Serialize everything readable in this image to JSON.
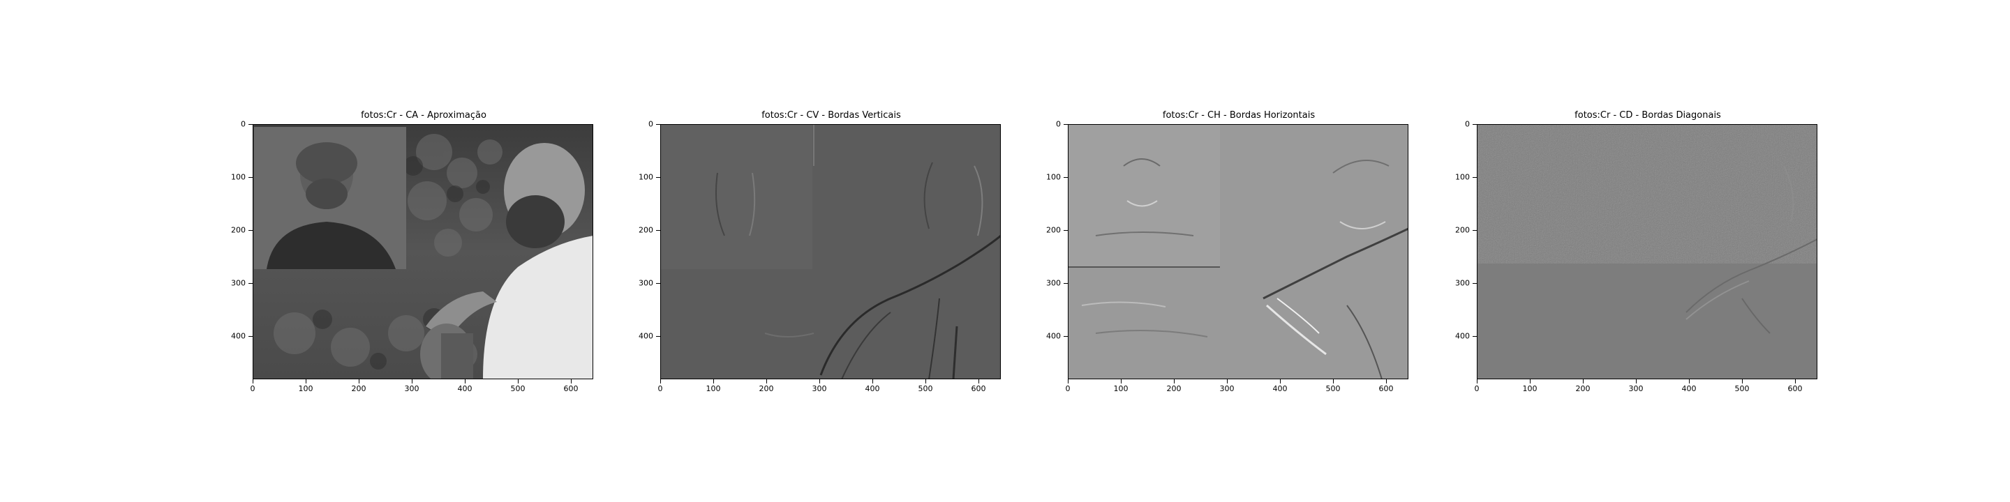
{
  "panels": [
    {
      "title": "fotos:Cr - CA - Aproximação",
      "kind": "approximation",
      "xticks": [
        "0",
        "100",
        "200",
        "300",
        "400",
        "500",
        "600"
      ],
      "yticks": [
        "0",
        "100",
        "200",
        "300",
        "400"
      ]
    },
    {
      "title": "fotos:Cr - CV - Bordas Verticais",
      "kind": "vertical",
      "xticks": [
        "0",
        "100",
        "200",
        "300",
        "400",
        "500",
        "600"
      ],
      "yticks": [
        "0",
        "100",
        "200",
        "300",
        "400"
      ]
    },
    {
      "title": "fotos:Cr - CH - Bordas Horizontais",
      "kind": "horizontal",
      "xticks": [
        "0",
        "100",
        "200",
        "300",
        "400",
        "500",
        "600"
      ],
      "yticks": [
        "0",
        "100",
        "200",
        "300",
        "400"
      ]
    },
    {
      "title": "fotos:Cr - CD - Bordas Diagonais",
      "kind": "diagonal",
      "xticks": [
        "0",
        "100",
        "200",
        "300",
        "400",
        "500",
        "600"
      ],
      "yticks": [
        "0",
        "100",
        "200",
        "300",
        "400"
      ]
    }
  ],
  "colors": {
    "approximation_bg": "#5a5a5a",
    "vertical_bg": "#5c5c5c",
    "horizontal_bg": "#9a9a9a",
    "diagonal_bg": "#7d7d7d"
  }
}
